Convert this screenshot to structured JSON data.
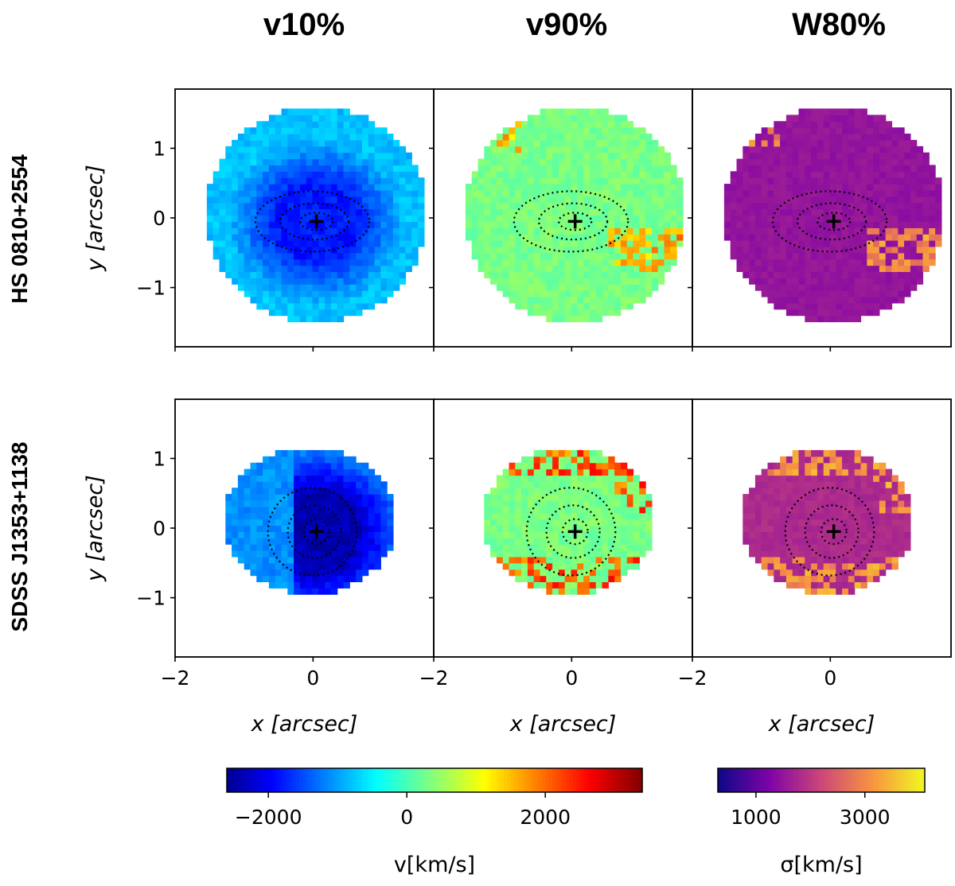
{
  "chart_data": {
    "type": "heatmap",
    "columns": [
      "v10%",
      "v90%",
      "W80%"
    ],
    "rows": [
      "HS 0810+2554",
      "SDSS J1353+1138"
    ],
    "xlabel": "x [arcsec]",
    "ylabel": "y [arcsec]",
    "xlim": [
      -2,
      1.75
    ],
    "ylim": [
      -1.85,
      1.85
    ],
    "xticks": [
      -2,
      0
    ],
    "yticks": [
      1,
      0,
      -1
    ],
    "center_marker": [
      0.05,
      -0.05
    ],
    "grid": false,
    "colorbars": [
      {
        "label": "v[km/s]",
        "cmap": "jet",
        "range": [
          -2600,
          3400
        ],
        "ticks": [
          -2000,
          0,
          2000
        ],
        "applies_to": [
          "v10%",
          "v90%"
        ]
      },
      {
        "label": "σ[km/s]",
        "cmap": "plasma",
        "range": [
          300,
          4100
        ],
        "ticks": [
          1000,
          3000
        ],
        "applies_to": [
          "W80%"
        ]
      }
    ],
    "panels": [
      {
        "row": "HS 0810+2554",
        "column": "v10%",
        "cmap": "jet",
        "typical_value": -1800,
        "outskirt_value": -800
      },
      {
        "row": "HS 0810+2554",
        "column": "v90%",
        "cmap": "jet",
        "typical_value": 300,
        "feature_value": 1900
      },
      {
        "row": "HS 0810+2554",
        "column": "W80%",
        "cmap": "plasma",
        "typical_value": 1500,
        "feature_value": 3400
      },
      {
        "row": "SDSS J1353+1138",
        "column": "v10%",
        "cmap": "jet",
        "typical_value": -2400,
        "outskirt_value": -1100
      },
      {
        "row": "SDSS J1353+1138",
        "column": "v90%",
        "cmap": "jet",
        "typical_value": 300,
        "feature_value": 2600
      },
      {
        "row": "SDSS J1353+1138",
        "column": "W80%",
        "cmap": "plasma",
        "typical_value": 1800,
        "feature_value": 3500
      }
    ],
    "colors": {
      "axes": "#000000",
      "contour": "#000000",
      "background": "#ffffff"
    }
  }
}
